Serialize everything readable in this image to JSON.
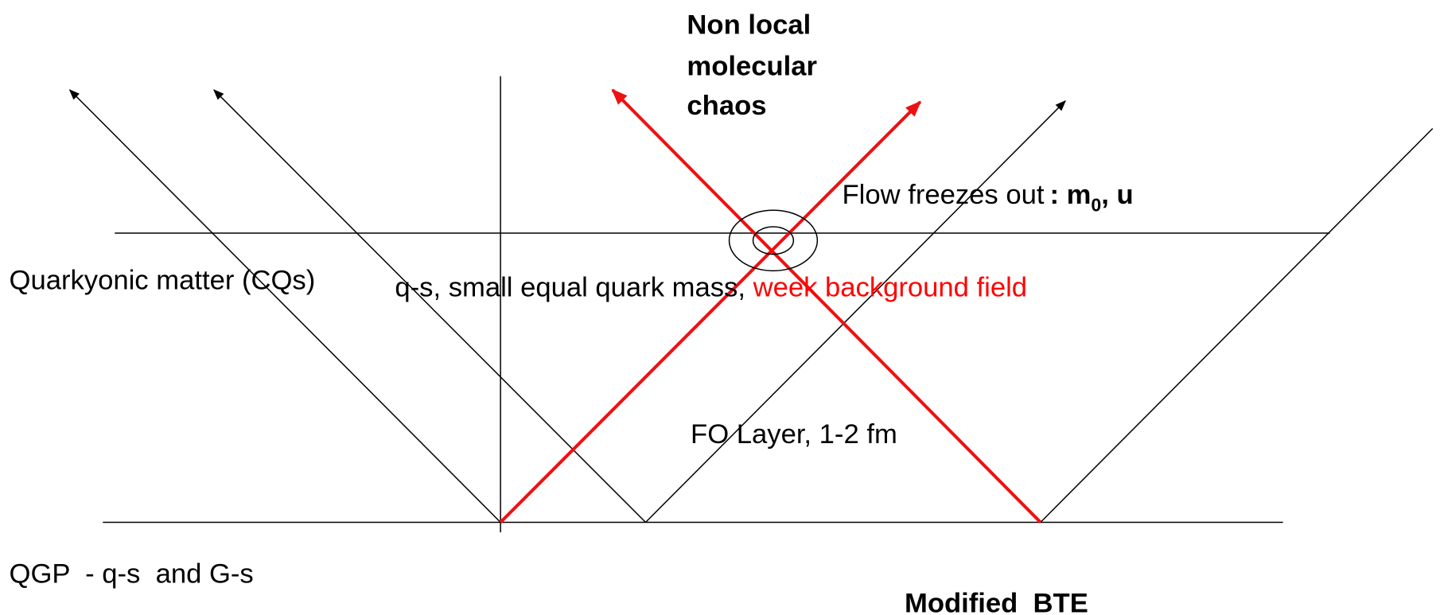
{
  "labels": {
    "non_local": [
      "Non local",
      "molecular",
      "chaos"
    ],
    "flow": {
      "text": "Flow freezes out",
      "bold": ": m",
      "sub": "0",
      "tail": ", u"
    },
    "quarkyonic": "Quarkyonic matter (CQs)",
    "qs": {
      "text": "q-s, small equal quark mass, ",
      "red": "week background field"
    },
    "fo_layer": "FO Layer, 1-2 fm",
    "qgp": "QGP  - q-s  and G-s",
    "bte": "Modified  BTE"
  }
}
